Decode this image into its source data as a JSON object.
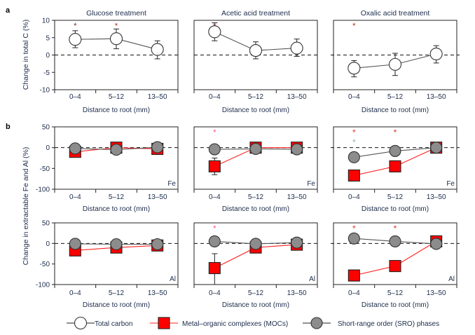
{
  "chart_data": {
    "type": "line",
    "panel_labels": [
      "a",
      "b"
    ],
    "categories": [
      "0–4",
      "5–12",
      "13–50"
    ],
    "xlabel": "Distance to root (mm)",
    "treatments": [
      "Glucose treatment",
      "Acetic acid treatment",
      "Oxalic acid treatment"
    ],
    "row_a": {
      "ylabel": "Change in total C (%)",
      "ylim": [
        -10,
        10
      ],
      "yticks": [
        "10",
        "5",
        "0",
        "-5",
        "-10"
      ],
      "panels": [
        {
          "series": [
            {
              "name": "Total carbon",
              "values": [
                4.5,
                4.7,
                1.6
              ],
              "err": [
                [
                  2.1,
                  7.0
                ],
                [
                  1.8,
                  7.5
                ],
                [
                  -1.1,
                  4.1
                ]
              ]
            }
          ],
          "stars": [
            {
              "cat": 0,
              "color": "#8b3a3a"
            },
            {
              "cat": 1,
              "color": "#c0392b"
            }
          ]
        },
        {
          "series": [
            {
              "name": "Total carbon",
              "values": [
                6.7,
                1.3,
                2.0
              ],
              "err": [
                [
                  4.1,
                  9.3
                ],
                [
                  -1.1,
                  3.8
                ],
                [
                  -0.4,
                  4.6
                ]
              ]
            }
          ],
          "stars": [
            {
              "cat": 0,
              "color": "#8b3a3a"
            }
          ]
        },
        {
          "series": [
            {
              "name": "Total carbon",
              "values": [
                -3.8,
                -2.7,
                0.3
              ],
              "err": [
                [
                  -6.3,
                  -1.6
                ],
                [
                  -5.9,
                  0.5
                ],
                [
                  -2.3,
                  2.7
                ]
              ]
            }
          ],
          "stars": [
            {
              "cat": 0,
              "color": "#c0392b"
            }
          ]
        }
      ]
    },
    "row_b": {
      "ylabel": "Change in extractable Fe and Al (%)",
      "ylim": [
        -100,
        50
      ],
      "yticks": [
        "50",
        "0",
        "-50",
        "-100"
      ],
      "elements": [
        "Fe",
        "Al"
      ],
      "panels": [
        [
          {
            "series": [
              {
                "name": "MOCs",
                "values": [
                  -10,
                  0,
                  -3
                ]
              },
              {
                "name": "SRO",
                "values": [
                  -2,
                  -5,
                  1
                ]
              }
            ],
            "stars": []
          },
          {
            "series": [
              {
                "name": "MOCs",
                "values": [
                  -45,
                  0,
                  0
                ],
                "err": [
                  [
                    -65,
                    -25
                  ],
                  null,
                  null
                ]
              },
              {
                "name": "SRO",
                "values": [
                  -4,
                  -3,
                  -4
                ]
              }
            ],
            "stars": [
              {
                "cat": 0,
                "color": "#ff5a8a"
              }
            ]
          },
          {
            "series": [
              {
                "name": "MOCs",
                "values": [
                  -67,
                  -45,
                  0
                ]
              },
              {
                "name": "SRO",
                "values": [
                  -23,
                  -8,
                  0
                ]
              }
            ],
            "stars": [
              {
                "cat": 0,
                "color": "#e8302a"
              },
              {
                "cat": 0,
                "color": "#9ab0b0",
                "row": 2
              },
              {
                "cat": 1,
                "color": "#e8302a"
              }
            ]
          }
        ],
        [
          {
            "series": [
              {
                "name": "MOCs",
                "values": [
                  -17,
                  -10,
                  -5
                ]
              },
              {
                "name": "SRO",
                "values": [
                  -1,
                  -2,
                  -2
                ]
              }
            ],
            "stars": []
          },
          {
            "series": [
              {
                "name": "MOCs",
                "values": [
                  -60,
                  -10,
                  -3
                ],
                "err": [
                  [
                    -100,
                    -25
                  ],
                  null,
                  null
                ]
              },
              {
                "name": "SRO",
                "values": [
                  5,
                  -1,
                  2
                ]
              }
            ],
            "stars": [
              {
                "cat": 0,
                "color": "#ff5a8a"
              }
            ]
          },
          {
            "series": [
              {
                "name": "MOCs",
                "values": [
                  -78,
                  -55,
                  5
                ]
              },
              {
                "name": "SRO",
                "values": [
                  12,
                  5,
                  -1
                ]
              }
            ],
            "stars": [
              {
                "cat": 0,
                "color": "#e8302a"
              },
              {
                "cat": 1,
                "color": "#e8302a"
              }
            ]
          }
        ]
      ]
    },
    "legend": {
      "placement": "bottom",
      "items": [
        "Total carbon",
        "Metal–organic complexes (MOCs)",
        "Short-range order (SRO) phases"
      ]
    },
    "colors": {
      "total_carbon": "#ffffff",
      "moc": "#ff0000",
      "sro": "#8c8c8c",
      "line_moc": "#ff2020",
      "line_other": "#555555"
    }
  }
}
